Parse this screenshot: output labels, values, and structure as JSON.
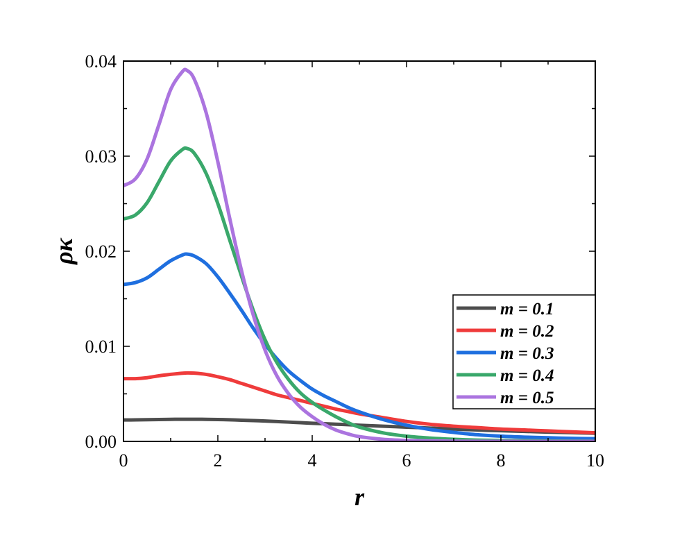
{
  "chart_data": {
    "type": "line",
    "title": "",
    "xlabel": "r",
    "ylabel": "ρκ",
    "xlim": [
      0,
      10
    ],
    "ylim": [
      0,
      0.04
    ],
    "xticks": [
      0,
      2,
      4,
      6,
      8,
      10
    ],
    "xtick_labels": [
      "0",
      "2",
      "4",
      "6",
      "8",
      "10"
    ],
    "yticks": [
      0,
      0.01,
      0.02,
      0.03,
      0.04
    ],
    "ytick_labels": [
      "0.00",
      "0.01",
      "0.02",
      "0.03",
      "0.04"
    ],
    "grid": false,
    "legend_position": "right",
    "x": [
      0,
      0.25,
      0.5,
      0.75,
      1,
      1.25,
      1.35,
      1.5,
      1.75,
      2,
      2.25,
      2.5,
      2.75,
      3,
      3.25,
      3.5,
      3.75,
      4,
      4.25,
      4.5,
      4.75,
      5,
      5.5,
      6,
      6.5,
      7,
      7.5,
      8,
      8.5,
      9,
      9.5,
      10
    ],
    "series": [
      {
        "name": "m = 0.1",
        "color": "#4d4d4d",
        "values": [
          0.00225,
          0.00226,
          0.00228,
          0.0023,
          0.00232,
          0.00233,
          0.00233,
          0.00233,
          0.00232,
          0.0023,
          0.00227,
          0.00223,
          0.00219,
          0.00214,
          0.00209,
          0.00203,
          0.00197,
          0.00191,
          0.00186,
          0.00181,
          0.00176,
          0.0017,
          0.0016,
          0.0015,
          0.0014,
          0.0013,
          0.0012,
          0.00112,
          0.00105,
          0.00098,
          0.00092,
          0.00086
        ]
      },
      {
        "name": "m = 0.2",
        "color": "#ef3b3b",
        "values": [
          0.0066,
          0.0066,
          0.0067,
          0.0069,
          0.00705,
          0.00717,
          0.0072,
          0.00718,
          0.00705,
          0.0068,
          0.0065,
          0.0061,
          0.0057,
          0.0053,
          0.0049,
          0.0046,
          0.0043,
          0.004,
          0.0037,
          0.0034,
          0.00315,
          0.0029,
          0.0025,
          0.0021,
          0.0018,
          0.0016,
          0.00145,
          0.0013,
          0.0012,
          0.0011,
          0.001,
          0.0009
        ]
      },
      {
        "name": "m = 0.3",
        "color": "#1f6fdf",
        "values": [
          0.0165,
          0.0167,
          0.0172,
          0.0181,
          0.019,
          0.0196,
          0.0197,
          0.0195,
          0.0187,
          0.0173,
          0.0156,
          0.0138,
          0.0119,
          0.0102,
          0.0087,
          0.0074,
          0.0064,
          0.0055,
          0.0048,
          0.0042,
          0.0036,
          0.0031,
          0.0023,
          0.0017,
          0.00125,
          0.00095,
          0.0007,
          0.00055,
          0.00045,
          0.00038,
          0.00032,
          0.00028
        ]
      },
      {
        "name": "m = 0.4",
        "color": "#3aa86b",
        "values": [
          0.0234,
          0.0238,
          0.0251,
          0.0273,
          0.0295,
          0.0307,
          0.0308,
          0.0303,
          0.0282,
          0.025,
          0.0212,
          0.0174,
          0.0138,
          0.0107,
          0.0083,
          0.0065,
          0.0051,
          0.0041,
          0.0033,
          0.0026,
          0.002,
          0.0015,
          0.0009,
          0.00055,
          0.00035,
          0.00022,
          0.00014,
          0.0001,
          7e-05,
          5e-05,
          3e-05,
          2e-05
        ]
      },
      {
        "name": "m = 0.5",
        "color": "#ab74df",
        "values": [
          0.0269,
          0.0276,
          0.0297,
          0.0333,
          0.037,
          0.0389,
          0.039,
          0.0381,
          0.0346,
          0.0294,
          0.0235,
          0.018,
          0.0133,
          0.0096,
          0.0069,
          0.005,
          0.0036,
          0.0026,
          0.0018,
          0.0012,
          0.0008,
          0.0005,
          0.00022,
          0.0001,
          5e-05,
          2e-05,
          1e-05,
          1e-05,
          0,
          0,
          0,
          0
        ]
      }
    ]
  }
}
